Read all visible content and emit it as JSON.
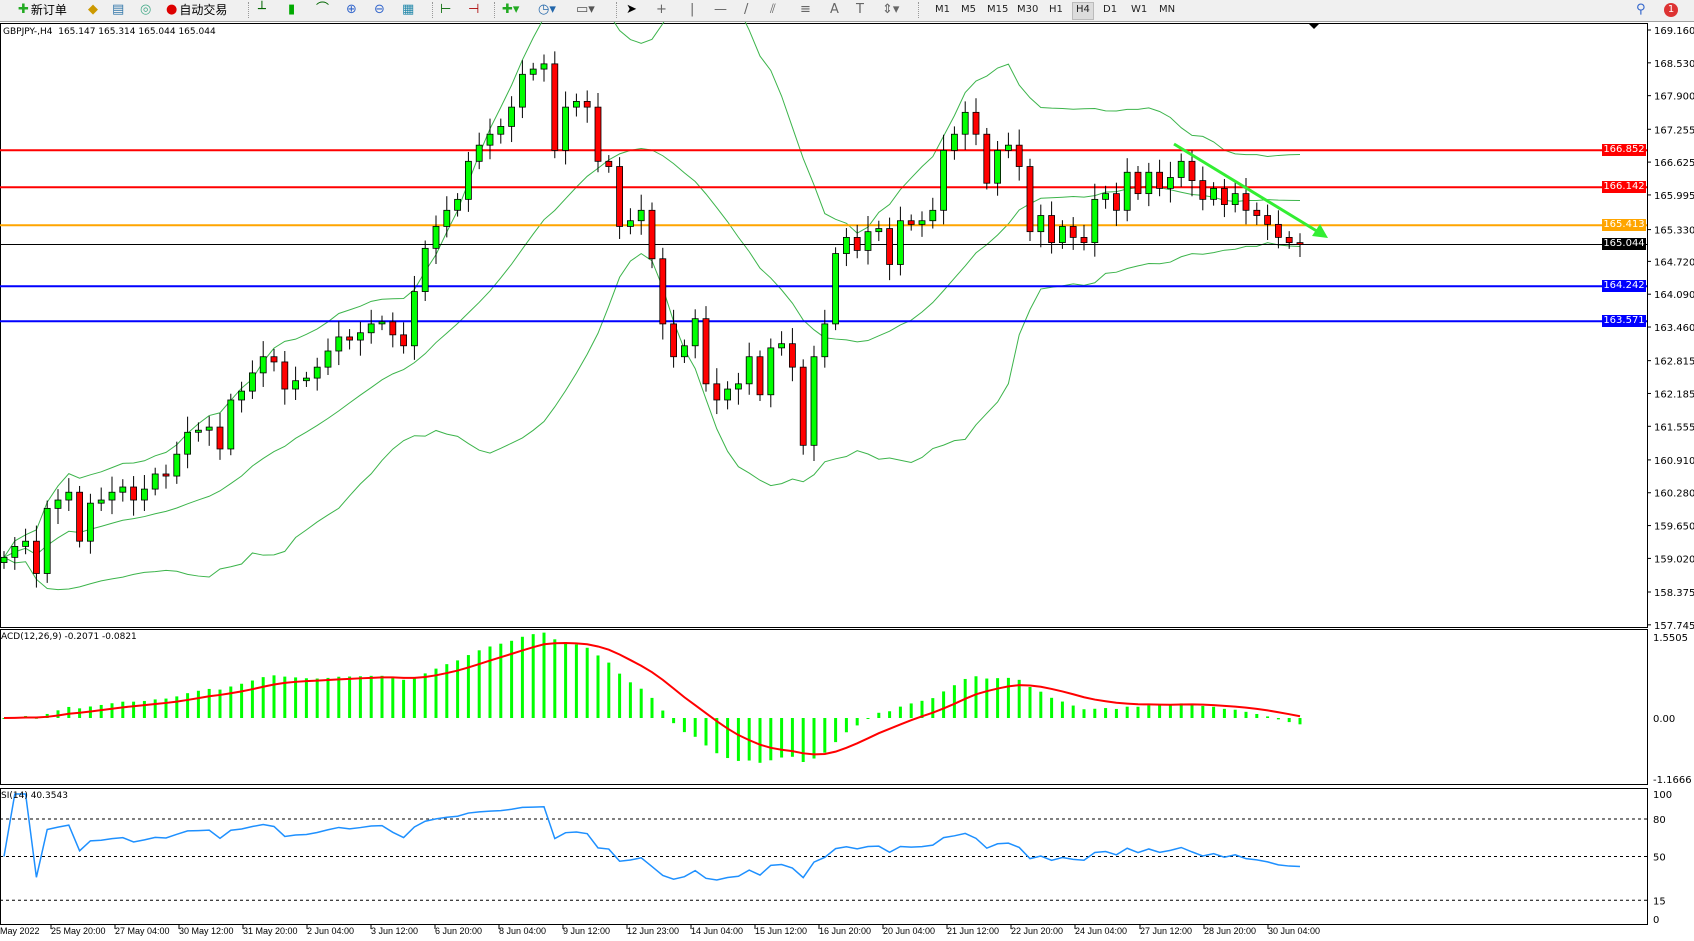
{
  "toolbar": {
    "new_order_label": "新订单",
    "auto_trading_label": "自动交易",
    "timeframes": [
      "M1",
      "M5",
      "M15",
      "M30",
      "H1",
      "H4",
      "D1",
      "W1",
      "MN"
    ],
    "active_timeframe": "H4",
    "notification_count": "1",
    "icons": [
      "new-order-icon",
      "navigator-icon",
      "history-icon",
      "signal-icon",
      "auto-trading-icon",
      "bar-chart-icon",
      "candlestick-icon",
      "line-chart-icon",
      "zoom-in-icon",
      "zoom-out-icon",
      "tile-windows-icon",
      "chart-shift-icon",
      "autoscroll-icon",
      "add-indicator-icon",
      "periods-icon",
      "templates-icon",
      "cursor-icon",
      "crosshair-icon",
      "vertical-line-icon",
      "horizontal-line-icon",
      "trendline-icon",
      "fibonacci-icon",
      "equidistant-channel-icon",
      "text-icon",
      "text-label-icon",
      "arrows-icon",
      "search-icon",
      "notification-icon"
    ]
  },
  "main_chart": {
    "info": "GBPJPY-,H4  165.147 165.314 165.044 165.044",
    "price_axis": [
      "169.160",
      "168.530",
      "167.900",
      "167.255",
      "166.625",
      "165.995",
      "165.330",
      "164.720",
      "164.090",
      "163.460",
      "162.815",
      "162.185",
      "161.555",
      "160.910",
      "160.280",
      "159.650",
      "159.020",
      "158.375",
      "157.745"
    ],
    "horizontal_lines": [
      {
        "price": 166.852,
        "label": "166.852",
        "color": "#ff0000"
      },
      {
        "price": 166.142,
        "label": "166.142",
        "color": "#ff0000"
      },
      {
        "price": 165.413,
        "label": "165.413",
        "color": "#ffa500"
      },
      {
        "price": 165.044,
        "label": "165.044",
        "color": "#000000"
      },
      {
        "price": 164.242,
        "label": "164.242",
        "color": "#0000ff"
      },
      {
        "price": 163.571,
        "label": "163.571",
        "color": "#0000ff"
      }
    ],
    "bands_color": "#3cb44b",
    "up_color": "#00ff00",
    "down_color": "#ff0000",
    "trend_arrow_color": "#33ee33"
  },
  "chart_data": {
    "type": "candlestick",
    "symbol": "GBPJPY-",
    "timeframe": "H4",
    "closes": [
      159.04,
      159.25,
      159.35,
      158.73,
      159.98,
      160.14,
      160.29,
      159.35,
      160.08,
      160.14,
      160.29,
      160.39,
      160.14,
      160.35,
      160.64,
      160.6,
      161.02,
      161.44,
      161.48,
      161.54,
      161.12,
      162.06,
      162.23,
      162.58,
      162.89,
      162.79,
      162.27,
      162.43,
      162.48,
      162.69,
      163.0,
      163.27,
      163.21,
      163.35,
      163.52,
      163.56,
      163.31,
      163.1,
      164.14,
      164.97,
      165.39,
      165.7,
      165.91,
      166.64,
      166.95,
      167.16,
      167.31,
      167.68,
      168.31,
      168.41,
      168.51,
      166.85,
      167.68,
      167.79,
      167.68,
      166.64,
      166.54,
      165.39,
      165.5,
      165.7,
      164.77,
      163.52,
      162.89,
      163.1,
      163.62,
      162.37,
      162.06,
      162.27,
      162.37,
      162.89,
      162.16,
      163.06,
      163.14,
      162.69,
      161.19,
      162.89,
      163.52,
      164.87,
      165.18,
      164.93,
      165.29,
      165.35,
      164.66,
      165.5,
      165.43,
      165.5,
      165.7,
      166.85,
      167.16,
      167.58,
      167.16,
      166.22,
      166.85,
      166.95,
      166.54,
      165.29,
      165.6,
      165.08,
      165.39,
      165.18,
      165.08,
      165.91,
      166.02,
      165.7,
      166.43,
      166.02,
      166.43,
      166.12,
      166.33,
      166.64,
      166.27,
      165.91,
      166.12,
      165.81,
      166.02,
      165.7,
      165.6,
      165.43,
      165.18,
      165.08,
      165.044
    ],
    "ylim": [
      157.745,
      169.16
    ],
    "time_labels": [
      "May 2022",
      "25 May 20:00",
      "27 May 04:00",
      "30 May 12:00",
      "31 May 20:00",
      "2 Jun 04:00",
      "3 Jun 12:00",
      "6 Jun 20:00",
      "8 Jun 04:00",
      "9 Jun 12:00",
      "12 Jun 23:00",
      "14 Jun 04:00",
      "15 Jun 12:00",
      "16 Jun 20:00",
      "20 Jun 04:00",
      "21 Jun 12:00",
      "22 Jun 20:00",
      "24 Jun 04:00",
      "27 Jun 12:00",
      "28 Jun 20:00",
      "30 Jun 04:00"
    ]
  },
  "macd": {
    "info": "ACD(12,26,9) -0.2071 -0.0821",
    "axis": [
      "1.5505",
      "0.00",
      "-1.1666"
    ],
    "range": [
      -1.1666,
      1.5505
    ],
    "hist_color": "#00ff00",
    "signal_color": "#ff0000"
  },
  "rsi": {
    "info": "SI(14) 40.3543",
    "axis": [
      "100",
      "80",
      "50",
      "15",
      "0"
    ],
    "levels": [
      80,
      50,
      15
    ],
    "line_color": "#1e90ff"
  }
}
